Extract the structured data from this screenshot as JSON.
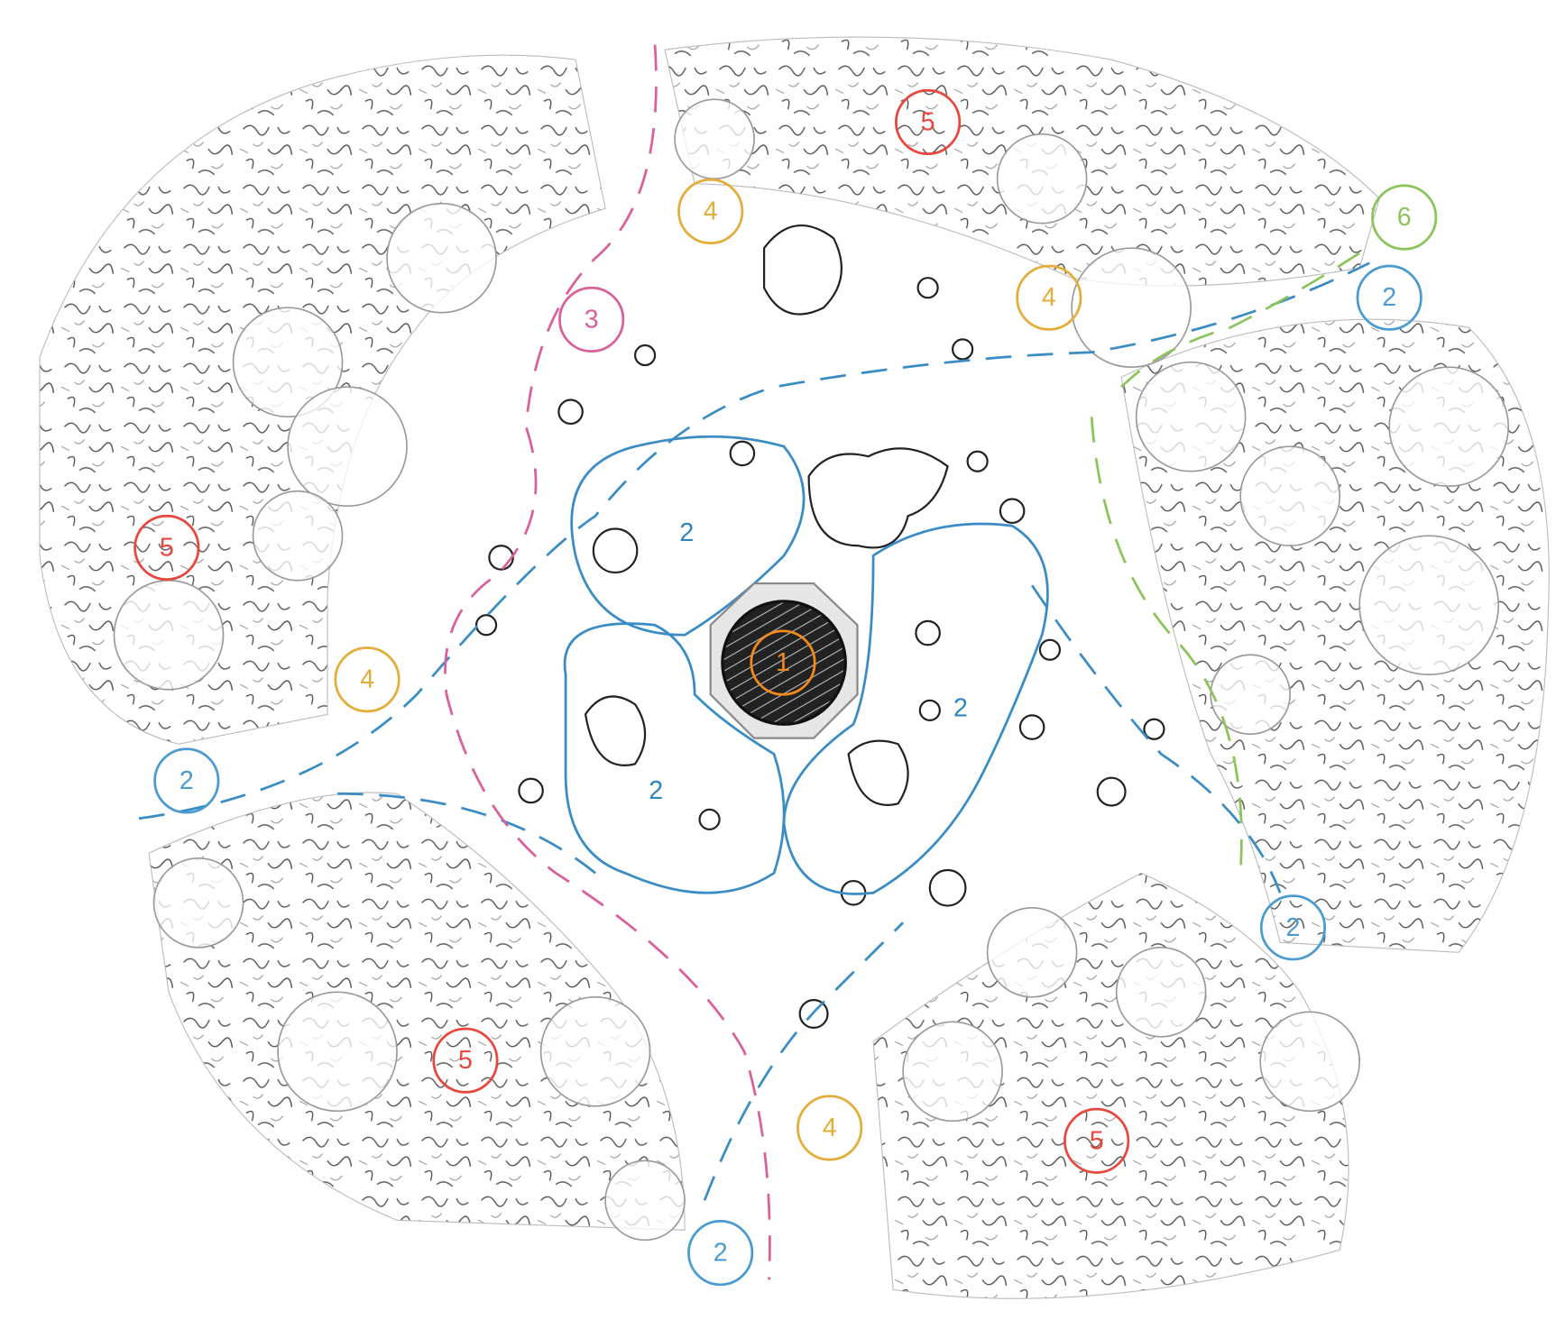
{
  "nodes": [
    {
      "label": "5",
      "color": "#e8473e"
    },
    {
      "label": "4",
      "color": "#e3ad3a"
    },
    {
      "label": "6",
      "color": "#8cc45c"
    },
    {
      "label": "4",
      "color": "#e3ad3a"
    },
    {
      "label": "2",
      "color": "#4a9bd0"
    },
    {
      "label": "3",
      "color": "#d9609a"
    },
    {
      "label": "5",
      "color": "#e8473e"
    },
    {
      "label": "2",
      "color": "#2f86bf"
    },
    {
      "label": "1",
      "color": "#f28a1c"
    },
    {
      "label": "4",
      "color": "#e3ad3a"
    },
    {
      "label": "2",
      "color": "#2f86bf"
    },
    {
      "label": "2",
      "color": "#4a9bd0"
    },
    {
      "label": "2",
      "color": "#2f86bf"
    },
    {
      "label": "2",
      "color": "#4a9bd0"
    },
    {
      "label": "5",
      "color": "#e8473e"
    },
    {
      "label": "4",
      "color": "#e3ad3a"
    },
    {
      "label": "5",
      "color": "#e8473e"
    },
    {
      "label": "2",
      "color": "#4a9bd0"
    }
  ]
}
